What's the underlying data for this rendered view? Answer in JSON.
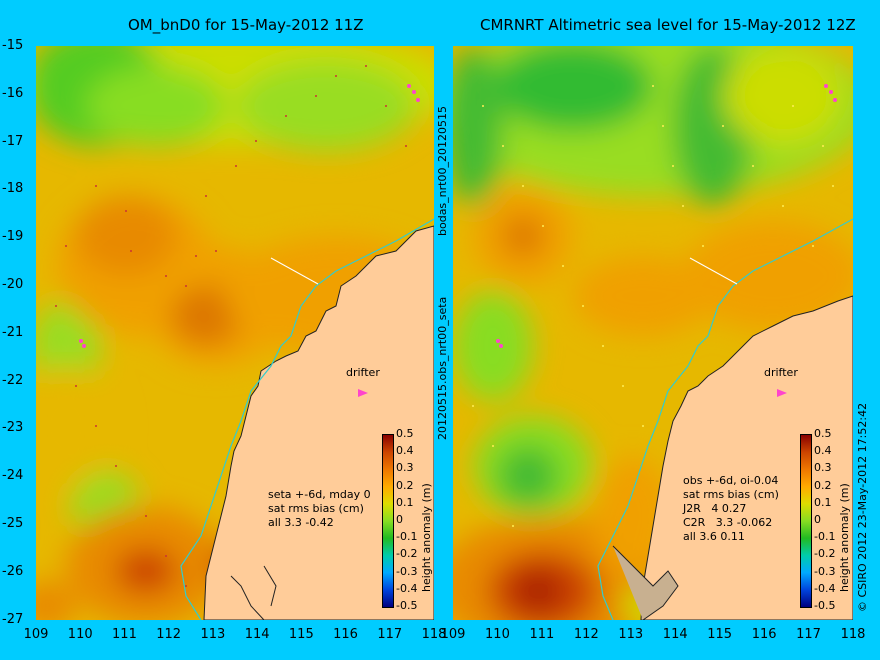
{
  "left_panel": {
    "title": "OM_bnD0 for 15-May-2012 11Z",
    "stats_lines": [
      "seta +-6d, mday 0",
      "sat rms bias (cm)",
      "all 3.3 -0.42"
    ],
    "drifter_label": "drifter"
  },
  "right_panel": {
    "title": "CMRNRT Altimetric sea level  for 15-May-2012 12Z",
    "stats_lines": [
      "obs +-6d, oi-0.04",
      "sat rms bias (cm)",
      "J2R   4 0.27",
      "C2R   3.3 -0.062",
      "all 3.6 0.11"
    ],
    "drifter_label": "drifter"
  },
  "y_ticks": [
    "-15",
    "-16",
    "-17",
    "-18",
    "-19",
    "-20",
    "-21",
    "-22",
    "-23",
    "-24",
    "-25",
    "-26",
    "-27"
  ],
  "x_ticks": [
    "109",
    "110",
    "111",
    "112",
    "113",
    "114",
    "115",
    "116",
    "117",
    "118"
  ],
  "colorbar": {
    "label": "height anomaly (m)",
    "ticks": [
      "0.5",
      "0.4",
      "0.3",
      "0.2",
      "0.1",
      "0",
      "-0.1",
      "-0.2",
      "-0.3",
      "-0.4",
      "-0.5"
    ],
    "colors": [
      "#000080",
      "#0044dd",
      "#00aaff",
      "#00ccaa",
      "#22bb22",
      "#88dd22",
      "#dddd00",
      "#ffaa00",
      "#ee7700",
      "#cc4400",
      "#880000"
    ]
  },
  "side_texts": {
    "mid_top": "bodas_nrt00_20120515",
    "mid_bottom": "20120515.obs_nrt00_seta",
    "right_credit": "© CSIRO 2012  23-May-2012 17:52:42"
  }
}
